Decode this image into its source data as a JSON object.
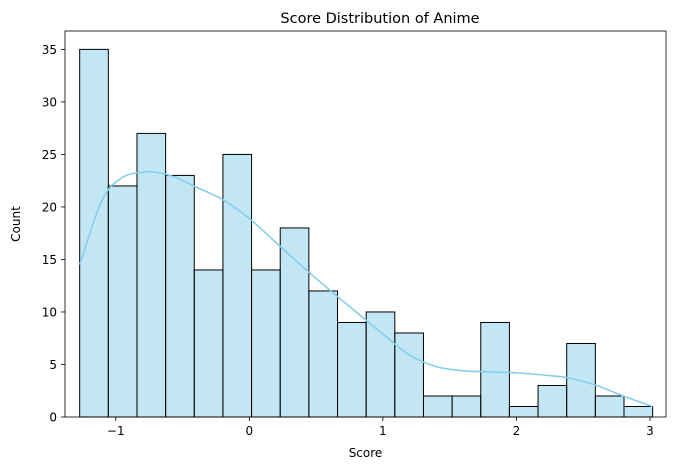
{
  "chart_data": {
    "type": "bar",
    "title": "Score Distribution of Anime",
    "xlabel": "Score",
    "ylabel": "Count",
    "xlim": [
      -1.38,
      3.12
    ],
    "ylim": [
      0,
      36.75
    ],
    "xticks": [
      -1,
      0,
      1,
      2,
      3
    ],
    "yticks": [
      0,
      5,
      10,
      15,
      20,
      25,
      30,
      35
    ],
    "bin_start": -1.27,
    "bin_width": 0.2145,
    "counts": [
      35,
      22,
      27,
      23,
      14,
      25,
      14,
      18,
      12,
      9,
      10,
      8,
      2,
      2,
      9,
      1,
      3,
      7,
      2,
      1
    ],
    "kde": {
      "x": [
        -1.27,
        -1.1,
        -0.95,
        -0.8,
        -0.7,
        -0.55,
        -0.4,
        -0.2,
        0.0,
        0.2,
        0.4,
        0.6,
        0.8,
        1.0,
        1.2,
        1.4,
        1.6,
        1.8,
        2.0,
        2.2,
        2.4,
        2.6,
        2.8,
        3.02
      ],
      "y": [
        14.5,
        20.7,
        22.8,
        23.3,
        23.3,
        22.8,
        21.9,
        20.7,
        18.9,
        16.6,
        14.3,
        12.1,
        10.0,
        7.9,
        5.9,
        4.8,
        4.4,
        4.3,
        4.2,
        4.0,
        3.7,
        3.0,
        2.0,
        1.0
      ]
    },
    "colors": {
      "bar_fill": "#87ceeb",
      "bar_edge": "#000000",
      "kde_line": "#87ceeb"
    },
    "grid": false,
    "legend": "none"
  }
}
